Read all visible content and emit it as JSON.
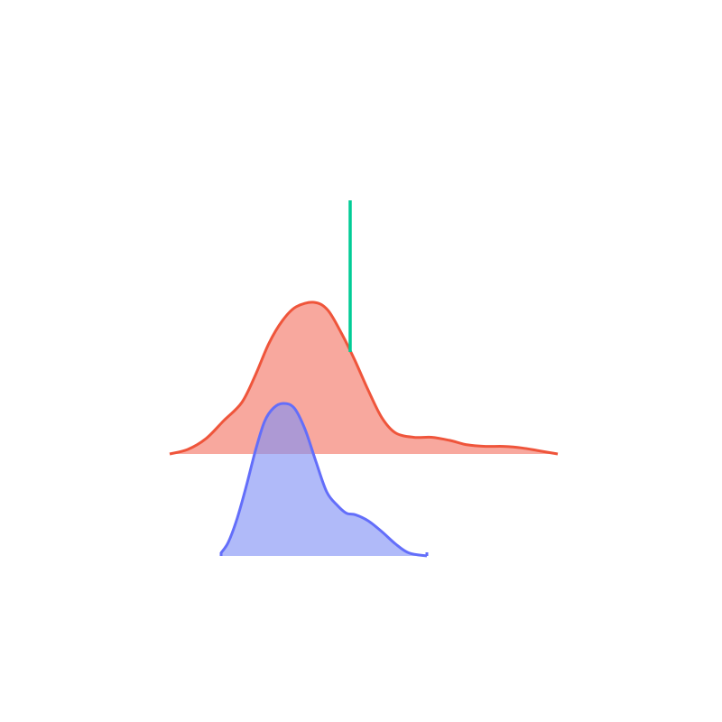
{
  "chart_data": {
    "type": "area",
    "title": "",
    "xlabel": "",
    "ylabel": "",
    "grid": false,
    "legend": "none",
    "axes_visible": false,
    "xlim": [
      0,
      430
    ],
    "series": [
      {
        "fill": "#f8a89e",
        "stroke": "#ef553b",
        "fill_opacity": 1,
        "points": [
          [
            0,
            0.0
          ],
          [
            20,
            0.03
          ],
          [
            40,
            0.1
          ],
          [
            60,
            0.22
          ],
          [
            80,
            0.34
          ],
          [
            95,
            0.52
          ],
          [
            110,
            0.73
          ],
          [
            125,
            0.88
          ],
          [
            140,
            0.97
          ],
          [
            160,
            1.0
          ],
          [
            175,
            0.95
          ],
          [
            190,
            0.8
          ],
          [
            205,
            0.62
          ],
          [
            220,
            0.42
          ],
          [
            235,
            0.24
          ],
          [
            250,
            0.14
          ],
          [
            270,
            0.11
          ],
          [
            290,
            0.11
          ],
          [
            310,
            0.09
          ],
          [
            330,
            0.06
          ],
          [
            350,
            0.05
          ],
          [
            370,
            0.05
          ],
          [
            390,
            0.04
          ],
          [
            410,
            0.02
          ],
          [
            430,
            0.0
          ]
        ]
      },
      {
        "fill": "#7f8ff6",
        "stroke": "#636efa",
        "fill_opacity": 0.62,
        "points": [
          [
            57,
            0.02
          ],
          [
            65,
            0.09
          ],
          [
            75,
            0.25
          ],
          [
            85,
            0.46
          ],
          [
            95,
            0.69
          ],
          [
            105,
            0.88
          ],
          [
            115,
            0.97
          ],
          [
            126,
            1.0
          ],
          [
            138,
            0.97
          ],
          [
            150,
            0.83
          ],
          [
            162,
            0.62
          ],
          [
            174,
            0.42
          ],
          [
            186,
            0.33
          ],
          [
            196,
            0.28
          ],
          [
            206,
            0.27
          ],
          [
            220,
            0.23
          ],
          [
            235,
            0.16
          ],
          [
            250,
            0.08
          ],
          [
            265,
            0.02
          ],
          [
            285,
            0.0
          ]
        ]
      }
    ],
    "reference_line": {
      "x": 200,
      "color": "#00cc96"
    }
  }
}
